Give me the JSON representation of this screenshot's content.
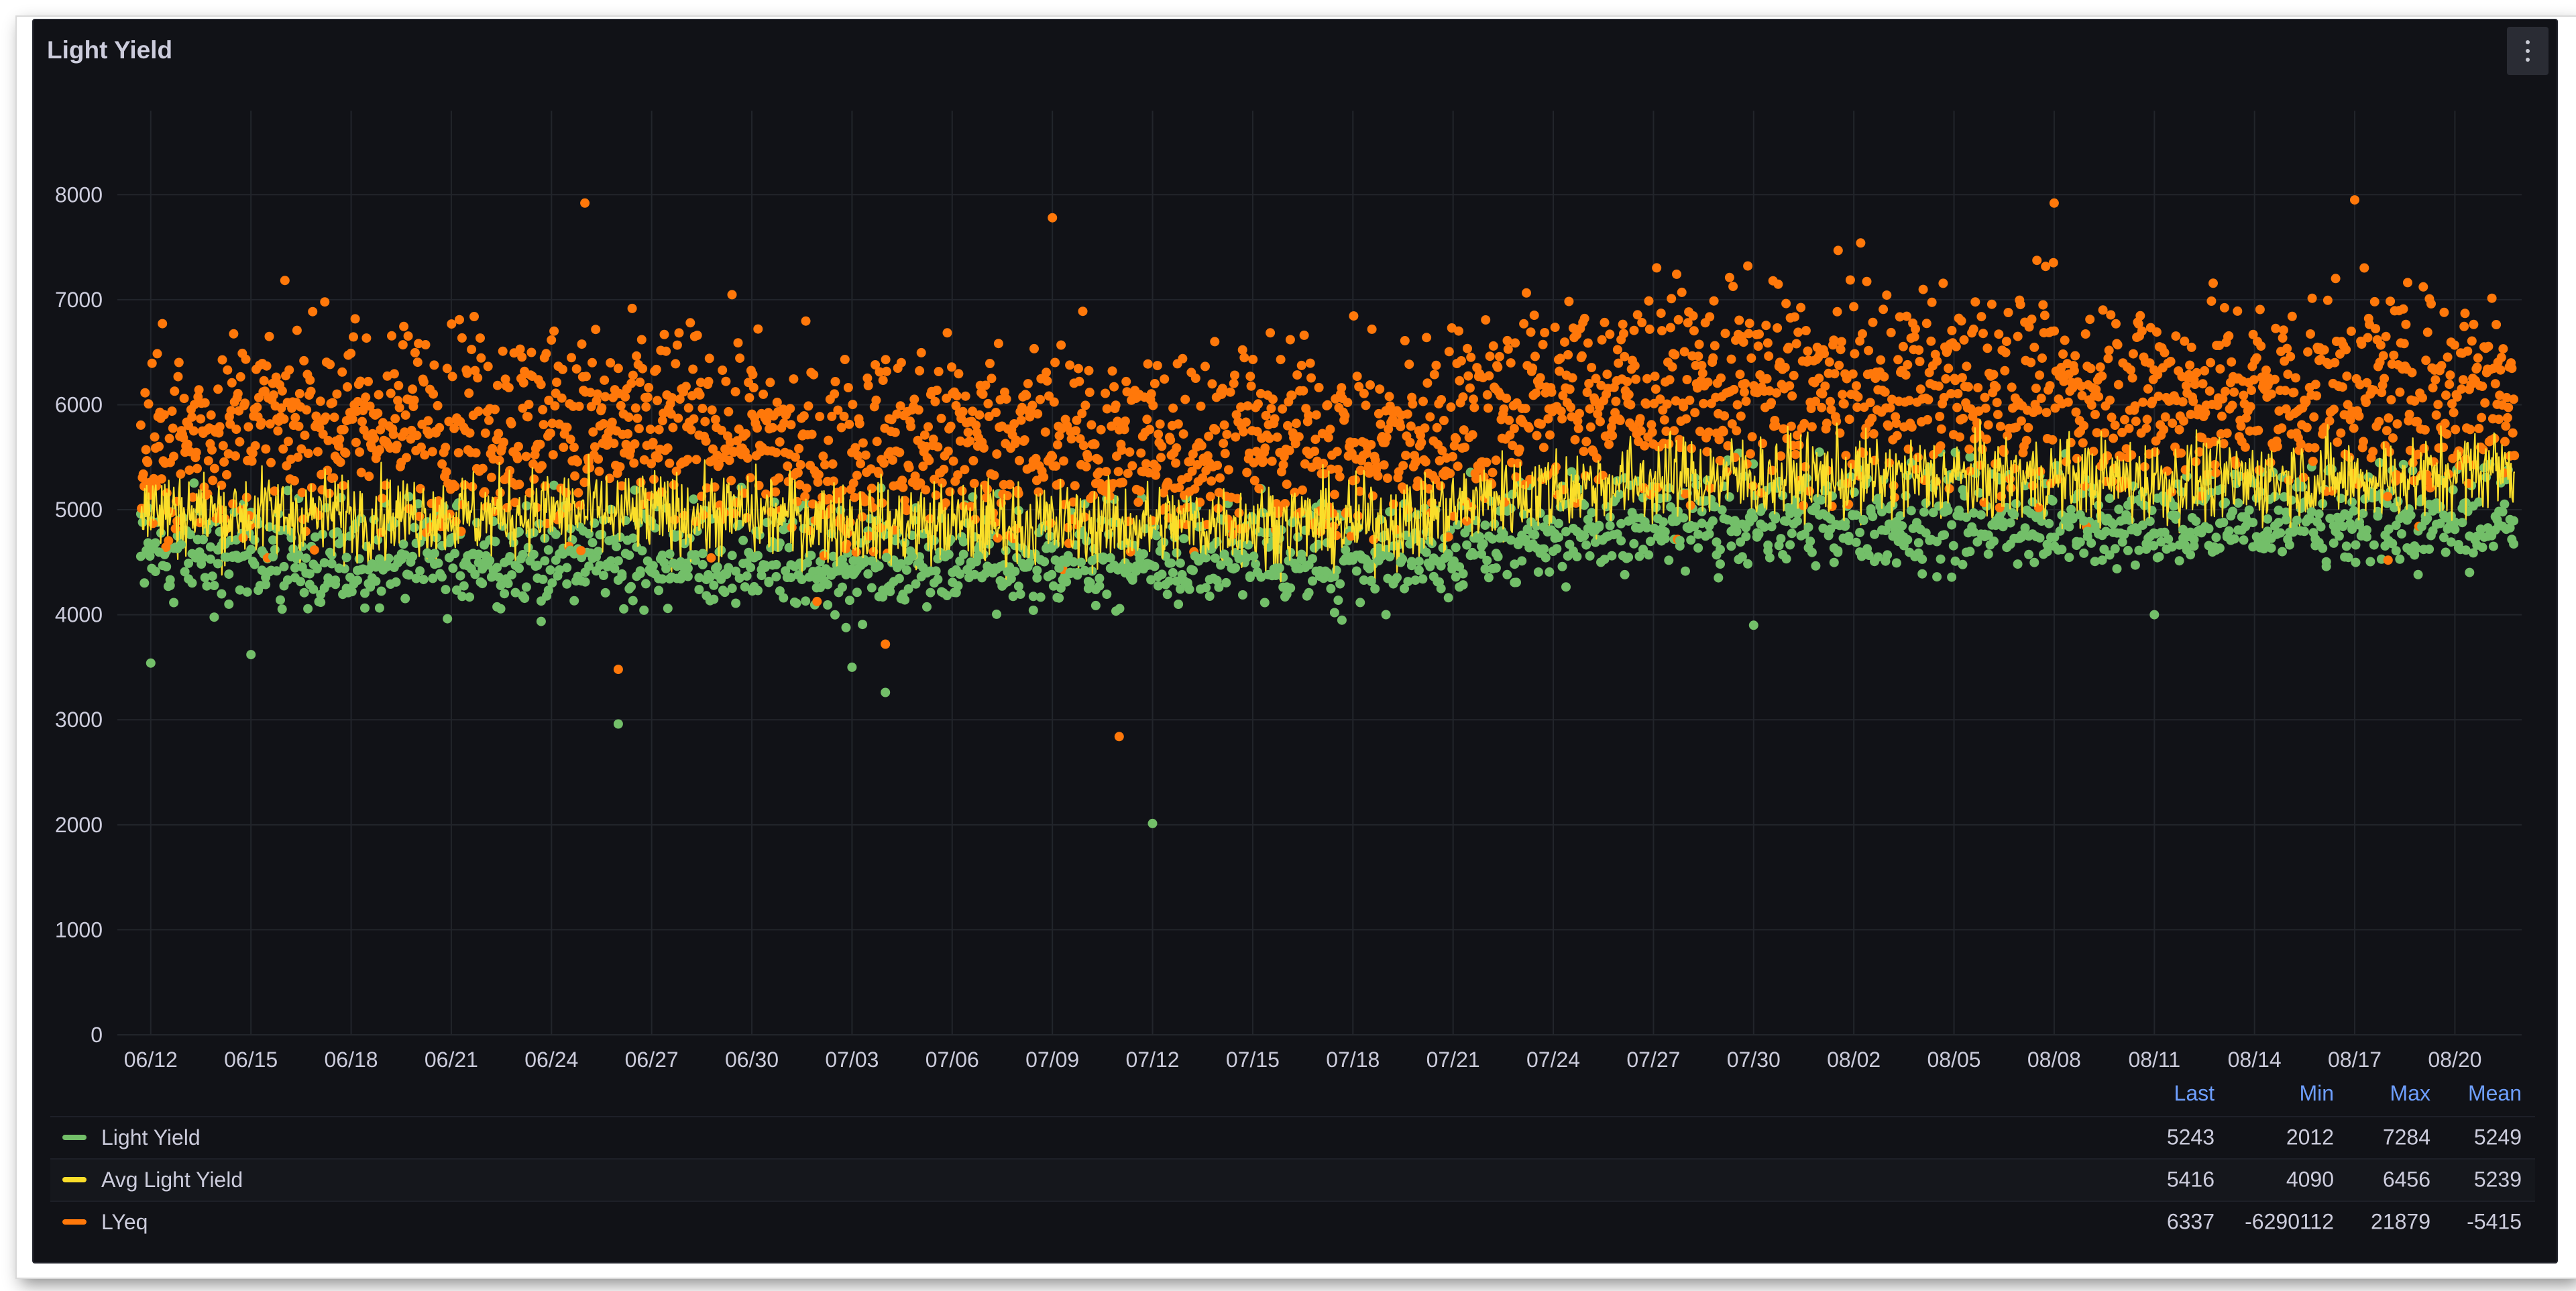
{
  "panel": {
    "title": "Light Yield",
    "menu_icon": "kebab-menu-icon"
  },
  "colors": {
    "background": "#111217",
    "grid": "#22252b",
    "text": "#ccccdc",
    "legend_header": "#6e9fff",
    "light_yield": "#73bf69",
    "avg_light_yield": "#fade2a",
    "lyeq": "#ff780a"
  },
  "legend": {
    "headers": [
      "Last",
      "Min",
      "Max",
      "Mean"
    ],
    "rows": [
      {
        "name": "Light Yield",
        "color": "#73bf69",
        "last": "5243",
        "min": "2012",
        "max": "7284",
        "mean": "5249"
      },
      {
        "name": "Avg Light Yield",
        "color": "#fade2a",
        "last": "5416",
        "min": "4090",
        "max": "6456",
        "mean": "5239"
      },
      {
        "name": "LYeq",
        "color": "#ff780a",
        "last": "6337",
        "min": "-6290112",
        "max": "21879",
        "mean": "-5415"
      }
    ]
  },
  "chart_data": {
    "type": "scatter",
    "title": "Light Yield",
    "xlabel": "",
    "ylabel": "",
    "x_ticks": [
      "06/12",
      "06/15",
      "06/18",
      "06/21",
      "06/24",
      "06/27",
      "06/30",
      "07/03",
      "07/06",
      "07/09",
      "07/12",
      "07/15",
      "07/18",
      "07/21",
      "07/24",
      "07/27",
      "07/30",
      "08/02",
      "08/05",
      "08/08",
      "08/11",
      "08/14",
      "08/17",
      "08/20"
    ],
    "x_range": [
      "06/11",
      "08/22"
    ],
    "y_ticks": [
      0,
      1000,
      2000,
      3000,
      4000,
      5000,
      6000,
      7000,
      8000
    ],
    "ylim": [
      0,
      8800
    ],
    "grid": true,
    "legend_placement": "bottom",
    "series": [
      {
        "name": "Light Yield",
        "render": "points",
        "color": "#73bf69",
        "x": [
          "06/12",
          "06/14",
          "06/16",
          "06/18",
          "06/20",
          "06/22",
          "06/24",
          "06/26",
          "06/28",
          "06/30",
          "07/02",
          "07/04",
          "07/06",
          "07/08",
          "07/10",
          "07/12",
          "07/14",
          "07/16",
          "07/18",
          "07/20",
          "07/22",
          "07/24",
          "07/26",
          "07/28",
          "07/30",
          "08/01",
          "08/03",
          "08/05",
          "08/07",
          "08/09",
          "08/11",
          "08/13",
          "08/15",
          "08/17",
          "08/19",
          "08/21"
        ],
        "y": [
          4700,
          4650,
          4600,
          4550,
          4600,
          4620,
          4600,
          4650,
          4600,
          4580,
          4500,
          4550,
          4580,
          4560,
          4550,
          4560,
          4580,
          4560,
          4550,
          4600,
          4750,
          4850,
          4900,
          4950,
          4950,
          4980,
          5000,
          5000,
          4980,
          4950,
          4950,
          4950,
          5000,
          4950,
          4950,
          5000
        ],
        "outliers": [
          {
            "x": "06/12",
            "y": 3540
          },
          {
            "x": "06/15",
            "y": 3620
          },
          {
            "x": "06/26",
            "y": 2960
          },
          {
            "x": "07/03",
            "y": 3500
          },
          {
            "x": "07/04",
            "y": 3260
          },
          {
            "x": "07/12",
            "y": 2012
          },
          {
            "x": "07/30",
            "y": 3900
          },
          {
            "x": "08/11",
            "y": 4000
          }
        ]
      },
      {
        "name": "Avg Light Yield",
        "render": "line",
        "color": "#fade2a",
        "x": [
          "06/12",
          "06/14",
          "06/16",
          "06/18",
          "06/20",
          "06/22",
          "06/24",
          "06/26",
          "06/28",
          "06/30",
          "07/02",
          "07/04",
          "07/06",
          "07/08",
          "07/10",
          "07/12",
          "07/14",
          "07/16",
          "07/18",
          "07/20",
          "07/22",
          "07/24",
          "07/26",
          "07/28",
          "07/30",
          "08/01",
          "08/03",
          "08/05",
          "08/07",
          "08/09",
          "08/11",
          "08/13",
          "08/15",
          "08/17",
          "08/19",
          "08/21"
        ],
        "y": [
          5000,
          4950,
          4950,
          4950,
          4950,
          4950,
          4980,
          4950,
          4950,
          4950,
          4900,
          4850,
          4850,
          4860,
          4850,
          4850,
          4870,
          4870,
          4860,
          4900,
          5100,
          5200,
          5250,
          5300,
          5300,
          5300,
          5300,
          5300,
          5300,
          5280,
          5280,
          5260,
          5300,
          5280,
          5300,
          5400
        ]
      },
      {
        "name": "LYeq",
        "render": "points",
        "color": "#ff780a",
        "x": [
          "06/12",
          "06/14",
          "06/16",
          "06/18",
          "06/20",
          "06/22",
          "06/24",
          "06/26",
          "06/28",
          "06/30",
          "07/02",
          "07/04",
          "07/06",
          "07/08",
          "07/10",
          "07/12",
          "07/14",
          "07/16",
          "07/18",
          "07/20",
          "07/22",
          "07/24",
          "07/26",
          "07/28",
          "07/30",
          "08/01",
          "08/03",
          "08/05",
          "08/07",
          "08/09",
          "08/11",
          "08/13",
          "08/15",
          "08/17",
          "08/19",
          "08/21"
        ],
        "y": [
          5500,
          5750,
          5800,
          5850,
          5800,
          5850,
          5800,
          5750,
          5750,
          5700,
          5400,
          5600,
          5650,
          5650,
          5600,
          5600,
          5650,
          5650,
          5600,
          5650,
          5950,
          6050,
          6100,
          6150,
          6150,
          6100,
          6150,
          6150,
          6100,
          6100,
          6100,
          6050,
          6100,
          6150,
          6050,
          6200
        ],
        "outliers": [
          {
            "x": "06/25",
            "y": 7920
          },
          {
            "x": "06/26",
            "y": 3480
          },
          {
            "x": "07/04",
            "y": 3720
          },
          {
            "x": "07/09",
            "y": 7780
          },
          {
            "x": "07/11",
            "y": 2840
          },
          {
            "x": "08/08",
            "y": 7920
          },
          {
            "x": "08/17",
            "y": 7950
          },
          {
            "x": "08/18",
            "y": 4520
          }
        ]
      }
    ]
  }
}
